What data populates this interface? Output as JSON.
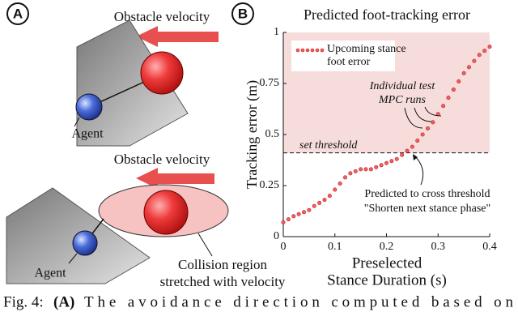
{
  "panel_a": {
    "label": "A",
    "top": {
      "velocity_label": "Obstacle velocity",
      "agent_label": "Agent"
    },
    "bottom": {
      "velocity_label": "Obstacle velocity",
      "agent_label": "Agent",
      "region_label": [
        "Collision region",
        "stretched with velocity"
      ]
    }
  },
  "chart_data": {
    "type": "scatter",
    "panel_label": "B",
    "title": "Predicted foot-tracking error",
    "xlabel": [
      "Preselected",
      "Stance Duration (s)"
    ],
    "ylabel": "Tracking error (m)",
    "x": [
      0,
      0.01,
      0.02,
      0.03,
      0.04,
      0.05,
      0.06,
      0.07,
      0.08,
      0.09,
      0.1,
      0.11,
      0.12,
      0.13,
      0.14,
      0.15,
      0.16,
      0.17,
      0.18,
      0.19,
      0.2,
      0.21,
      0.22,
      0.23,
      0.24,
      0.25,
      0.26,
      0.27,
      0.28,
      0.29,
      0.3,
      0.31,
      0.32,
      0.33,
      0.34,
      0.35,
      0.36,
      0.37,
      0.38,
      0.39,
      0.4
    ],
    "series": [
      {
        "name": "Upcoming stance foot error",
        "color": "#f06060",
        "values": [
          0.07,
          0.085,
          0.1,
          0.11,
          0.12,
          0.13,
          0.15,
          0.165,
          0.18,
          0.2,
          0.23,
          0.26,
          0.29,
          0.31,
          0.32,
          0.33,
          0.33,
          0.33,
          0.34,
          0.35,
          0.36,
          0.37,
          0.38,
          0.4,
          0.42,
          0.44,
          0.47,
          0.5,
          0.53,
          0.56,
          0.6,
          0.64,
          0.68,
          0.72,
          0.76,
          0.8,
          0.83,
          0.86,
          0.89,
          0.91,
          0.93
        ]
      }
    ],
    "xlim": [
      0,
      0.4
    ],
    "ylim": [
      0,
      1
    ],
    "xticks": [
      0,
      0.1,
      0.2,
      0.3,
      0.4
    ],
    "yticks": [
      0,
      0.25,
      0.5,
      0.75,
      1
    ],
    "threshold": 0.41,
    "threshold_label": "set threshold",
    "annotations": {
      "runs": [
        "Individual test",
        "MPC runs"
      ],
      "cross": [
        "Predicted to cross threshold",
        "\"Shorten next stance phase\""
      ]
    }
  },
  "caption": {
    "label": "Fig. 4:",
    "panel": "(A)",
    "text": "The avoidance direction computed based on"
  }
}
